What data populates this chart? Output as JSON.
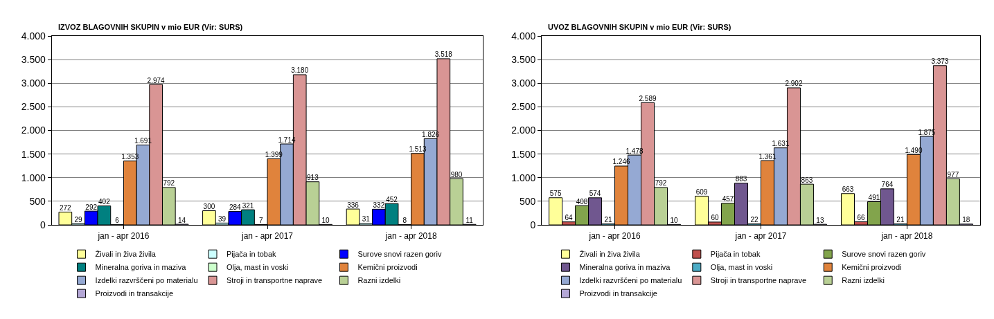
{
  "chart_data": [
    {
      "type": "bar",
      "title": "IZVOZ BLAGOVNIH SKUPIN v mio EUR (Vir: SURS)",
      "categories": [
        "jan - apr 2016",
        "jan - apr 2017",
        "jan - apr 2018"
      ],
      "ylim": [
        0,
        4000
      ],
      "yticks": [
        {
          "value": 0,
          "label": "0"
        },
        {
          "value": 500,
          "label": "500"
        },
        {
          "value": 1000,
          "label": "1.000"
        },
        {
          "value": 1500,
          "label": "1.500"
        },
        {
          "value": 2000,
          "label": "2.000"
        },
        {
          "value": 2500,
          "label": "2.500"
        },
        {
          "value": 3000,
          "label": "3.000"
        },
        {
          "value": 3500,
          "label": "3.500"
        },
        {
          "value": 4000,
          "label": "4.000"
        }
      ],
      "grid": "y",
      "legend": "bottom",
      "series": [
        {
          "name": "Živali in živa živila",
          "color": "#ffff99",
          "values": [
            272,
            300,
            336
          ],
          "value_labels": [
            "272",
            "300",
            "336"
          ]
        },
        {
          "name": "Pijača in tobak",
          "color": "#ccffff",
          "values": [
            29,
            39,
            31
          ],
          "value_labels": [
            "29",
            "39",
            "31"
          ]
        },
        {
          "name": "Surove snovi razen goriv",
          "color": "#0000ff",
          "values": [
            292,
            284,
            332
          ],
          "value_labels": [
            "292",
            "284",
            "332"
          ]
        },
        {
          "name": "Mineralna goriva in maziva",
          "color": "#008080",
          "values": [
            402,
            321,
            452
          ],
          "value_labels": [
            "402",
            "321",
            "452"
          ]
        },
        {
          "name": "Olja, mast in voski",
          "color": "#ccffcc",
          "values": [
            6,
            7,
            8
          ],
          "value_labels": [
            "6",
            "7",
            "8"
          ]
        },
        {
          "name": "Kemični proizvodi",
          "color": "#e0833c",
          "values": [
            1353,
            1399,
            1513
          ],
          "value_labels": [
            "1.353",
            "1.399",
            "1.513"
          ]
        },
        {
          "name": "Izdelki razvrščeni po materialu",
          "color": "#95a9d3",
          "values": [
            1691,
            1714,
            1826
          ],
          "value_labels": [
            "1.691",
            "1.714",
            "1.826"
          ]
        },
        {
          "name": "Stroji in transportne naprave",
          "color": "#d99594",
          "values": [
            2974,
            3180,
            3518
          ],
          "value_labels": [
            "2.974",
            "3.180",
            "3.518"
          ]
        },
        {
          "name": "Razni izdelki",
          "color": "#b9d095",
          "values": [
            792,
            913,
            980
          ],
          "value_labels": [
            "792",
            "913",
            "980"
          ]
        },
        {
          "name": "Proizvodi in transakcije",
          "color": "#b4a7d6",
          "values": [
            14,
            10,
            11
          ],
          "value_labels": [
            "14",
            "10",
            "11"
          ]
        }
      ]
    },
    {
      "type": "bar",
      "title": "UVOZ BLAGOVNIH SKUPIN v mio EUR (Vir: SURS)",
      "categories": [
        "jan - apr 2016",
        "jan - apr 2017",
        "jan - apr 2018"
      ],
      "ylim": [
        0,
        4000
      ],
      "yticks": [
        {
          "value": 0,
          "label": "0"
        },
        {
          "value": 500,
          "label": "500"
        },
        {
          "value": 1000,
          "label": "1.000"
        },
        {
          "value": 1500,
          "label": "1.500"
        },
        {
          "value": 2000,
          "label": "2.000"
        },
        {
          "value": 2500,
          "label": "2.500"
        },
        {
          "value": 3000,
          "label": "3.000"
        },
        {
          "value": 3500,
          "label": "3.500"
        },
        {
          "value": 4000,
          "label": "4.000"
        }
      ],
      "grid": "y",
      "legend": "bottom",
      "series": [
        {
          "name": "Živali in živa živila",
          "color": "#ffff99",
          "values": [
            575,
            609,
            663
          ],
          "value_labels": [
            "575",
            "609",
            "663"
          ]
        },
        {
          "name": "Pijača in tobak",
          "color": "#c0504d",
          "values": [
            64,
            60,
            66
          ],
          "value_labels": [
            "64",
            "60",
            "66"
          ]
        },
        {
          "name": "Surove snovi razen goriv",
          "color": "#82a44c",
          "values": [
            408,
            457,
            491
          ],
          "value_labels": [
            "408",
            "457",
            "491"
          ]
        },
        {
          "name": "Mineralna goriva in maziva",
          "color": "#70578f",
          "values": [
            574,
            883,
            764
          ],
          "value_labels": [
            "574",
            "883",
            "764"
          ]
        },
        {
          "name": "Olja, mast in voski",
          "color": "#4bacc6",
          "values": [
            21,
            22,
            21
          ],
          "value_labels": [
            "21",
            "22",
            "21"
          ]
        },
        {
          "name": "Kemični proizvodi",
          "color": "#e0833c",
          "values": [
            1246,
            1361,
            1490
          ],
          "value_labels": [
            "1.246",
            "1.361",
            "1.490"
          ]
        },
        {
          "name": "Izdelki razvrščeni po materialu",
          "color": "#95a9d3",
          "values": [
            1478,
            1631,
            1875
          ],
          "value_labels": [
            "1.478",
            "1.631",
            "1.875"
          ]
        },
        {
          "name": "Stroji in transportne naprave",
          "color": "#d99594",
          "values": [
            2589,
            2902,
            3373
          ],
          "value_labels": [
            "2.589",
            "2.902",
            "3.373"
          ]
        },
        {
          "name": "Razni izdelki",
          "color": "#b9d095",
          "values": [
            792,
            863,
            977
          ],
          "value_labels": [
            "792",
            "863",
            "977"
          ]
        },
        {
          "name": "Proizvodi in transakcije",
          "color": "#b4a7d6",
          "values": [
            10,
            13,
            18
          ],
          "value_labels": [
            "10",
            "13",
            "18"
          ]
        }
      ]
    }
  ]
}
